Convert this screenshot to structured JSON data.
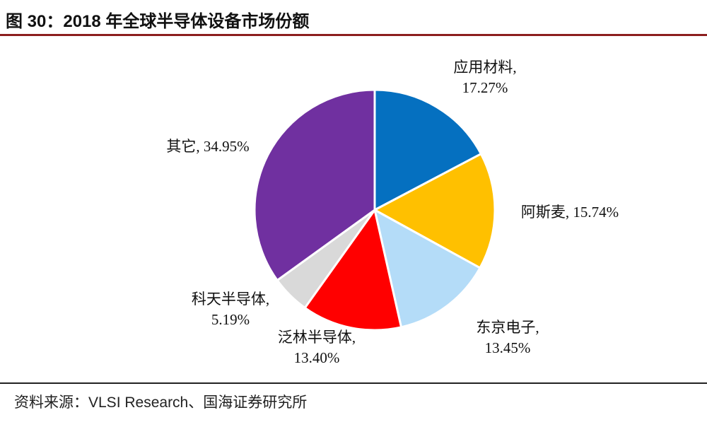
{
  "header": {
    "title": "图 30：2018 年全球半导体设备市场份额"
  },
  "footer": {
    "source": "资料来源：VLSI Research、国海证券研究所"
  },
  "chart_data": {
    "type": "pie",
    "title": "图 30：2018 年全球半导体设备市场份额",
    "slices": [
      {
        "name": "应用材料",
        "value": 17.27,
        "display": "17.27%",
        "color": "#0570C0"
      },
      {
        "name": "阿斯麦",
        "value": 15.74,
        "display": "15.74%",
        "color": "#FFC000"
      },
      {
        "name": "东京电子",
        "value": 13.45,
        "display": "13.45%",
        "color": "#B4DCF8"
      },
      {
        "name": "泛林半导体",
        "value": 13.4,
        "display": "13.40%",
        "color": "#FF0000"
      },
      {
        "name": "科天半导体",
        "value": 5.19,
        "display": "5.19%",
        "color": "#D9D9D9"
      },
      {
        "name": "其它",
        "value": 34.95,
        "display": "34.95%",
        "color": "#7030A0"
      }
    ],
    "start": "12 o'clock",
    "direction": "clockwise",
    "legend": "none",
    "labels": "outside"
  }
}
